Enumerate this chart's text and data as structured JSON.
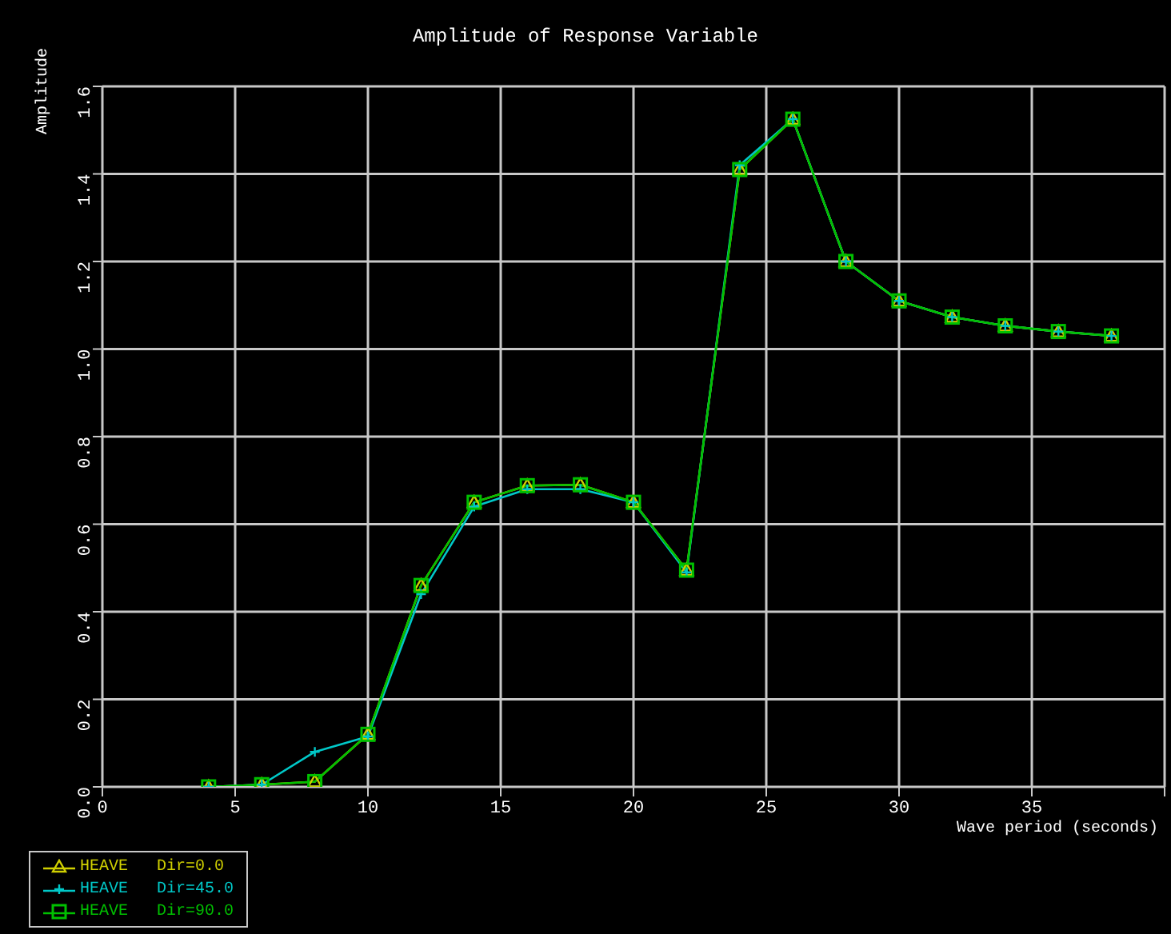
{
  "chart_data": {
    "type": "line",
    "title": "Amplitude of Response Variable",
    "xlabel": "Wave period (seconds)",
    "ylabel": "Amplitude",
    "x": [
      4,
      6,
      8,
      10,
      12,
      14,
      16,
      18,
      20,
      22,
      24,
      26,
      28,
      30,
      32,
      34,
      36,
      38
    ],
    "series": [
      {
        "name": "HEAVE   Dir=0.0",
        "color": "#d0d000",
        "marker": "triangle",
        "values": [
          0,
          0.005,
          0.012,
          0.12,
          0.46,
          0.65,
          0.688,
          0.69,
          0.65,
          0.495,
          1.41,
          1.525,
          1.2,
          1.11,
          1.073,
          1.053,
          1.04,
          1.03
        ]
      },
      {
        "name": "HEAVE   Dir=45.0",
        "color": "#00c8c8",
        "marker": "cross",
        "values": [
          0,
          0.005,
          0.08,
          0.115,
          0.44,
          0.64,
          0.68,
          0.68,
          0.65,
          0.49,
          1.42,
          1.525,
          1.2,
          1.11,
          1.073,
          1.053,
          1.04,
          1.03
        ]
      },
      {
        "name": "HEAVE   Dir=90.0",
        "color": "#00c000",
        "marker": "square",
        "values": [
          0,
          0.005,
          0.012,
          0.12,
          0.46,
          0.65,
          0.688,
          0.69,
          0.65,
          0.495,
          1.41,
          1.525,
          1.2,
          1.11,
          1.073,
          1.053,
          1.04,
          1.03
        ]
      }
    ],
    "xlim": [
      0,
      40
    ],
    "xticks": [
      0,
      5,
      10,
      15,
      20,
      25,
      30,
      35,
      {
        "value": 40,
        "label": null
      }
    ],
    "ylim": [
      0,
      1.6
    ],
    "yticks": [
      {
        "value": 0,
        "label": "0.0"
      },
      0.2,
      0.4,
      0.6,
      0.8,
      {
        "value": 1,
        "label": "1.0"
      },
      1.2,
      1.4,
      1.6
    ],
    "grid": true,
    "legend": "bottom left"
  }
}
